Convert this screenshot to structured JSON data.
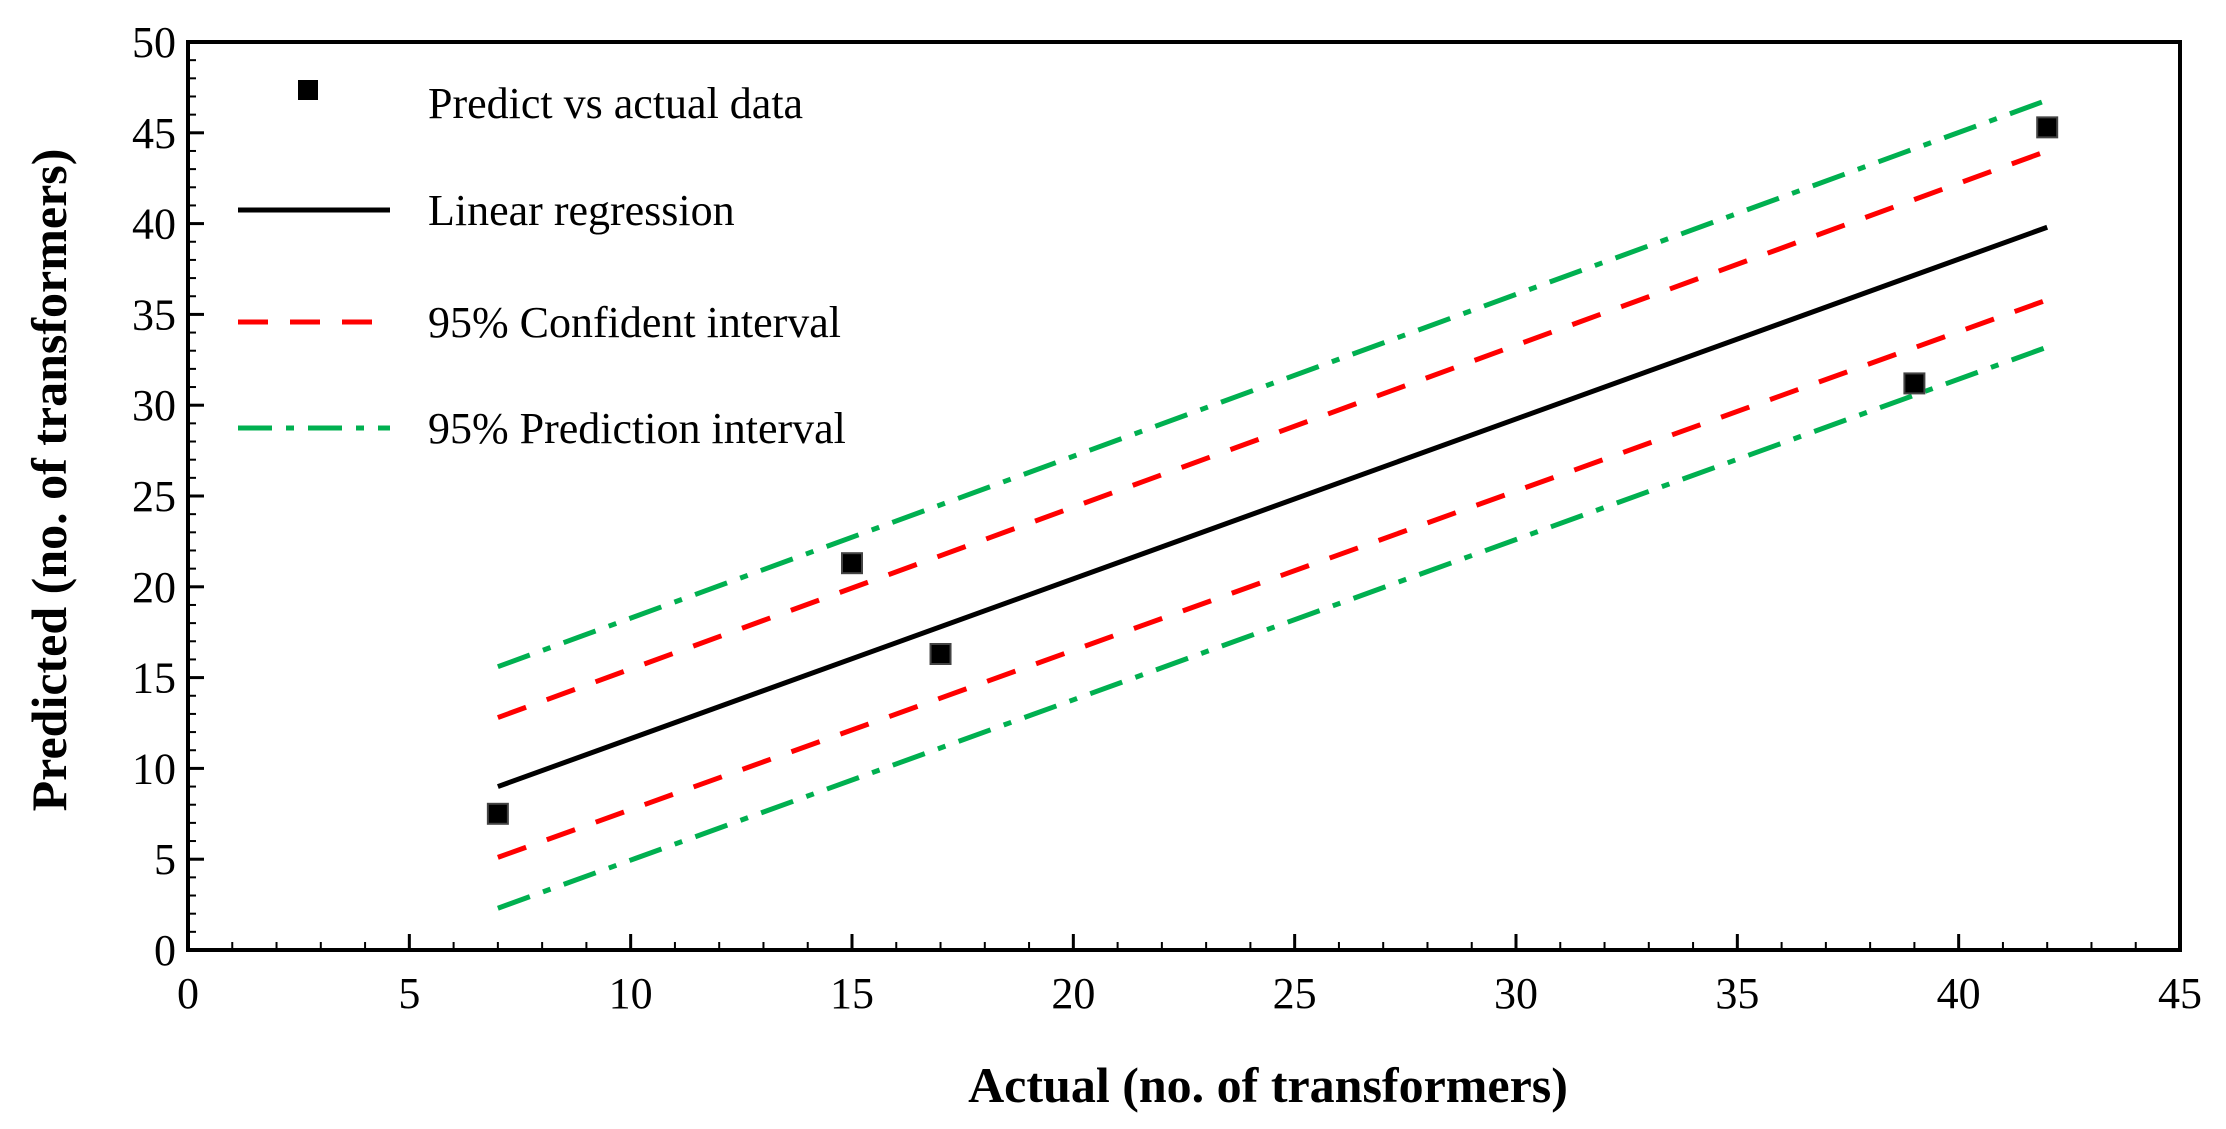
{
  "chart_data": {
    "type": "scatter",
    "title": "",
    "xlabel": "Actual (no. of transformers)",
    "ylabel": "Predicted (no. of transformers)",
    "xlim": [
      0,
      45
    ],
    "ylim": [
      0,
      50
    ],
    "x_ticks": [
      0,
      5,
      10,
      15,
      20,
      25,
      30,
      35,
      40,
      45
    ],
    "y_ticks": [
      0,
      5,
      10,
      15,
      20,
      25,
      30,
      35,
      40,
      45,
      50
    ],
    "x_tick_labels": [
      "0",
      "5",
      "10",
      "15",
      "20",
      "25",
      "30",
      "35",
      "40",
      "45"
    ],
    "y_tick_labels": [
      "0",
      "5",
      "10",
      "15",
      "20",
      "25",
      "30",
      "35",
      "40",
      "45",
      "50"
    ],
    "grid": false,
    "legend_position": "top-left",
    "points": {
      "name": "Predict vs actual data",
      "color": "#000000",
      "x": [
        7,
        15,
        17,
        39,
        42
      ],
      "y": [
        7.5,
        21.3,
        16.3,
        31.2,
        45.3
      ]
    },
    "series": [
      {
        "name": "Linear regression",
        "style": "solid",
        "color": "#000000",
        "x": [
          7,
          42
        ],
        "y": [
          9.0,
          39.8
        ]
      },
      {
        "name": "95% Confident interval",
        "style": "dashed",
        "color": "#ff0000",
        "x": [
          7,
          42
        ],
        "y_upper": [
          12.8,
          44.0
        ],
        "y_lower": [
          5.1,
          35.8
        ]
      },
      {
        "name": "95% Prediction interval",
        "style": "dashdot",
        "color": "#00b050",
        "x": [
          7,
          42
        ],
        "y_upper": [
          15.6,
          46.8
        ],
        "y_lower": [
          2.3,
          33.2
        ]
      }
    ]
  }
}
